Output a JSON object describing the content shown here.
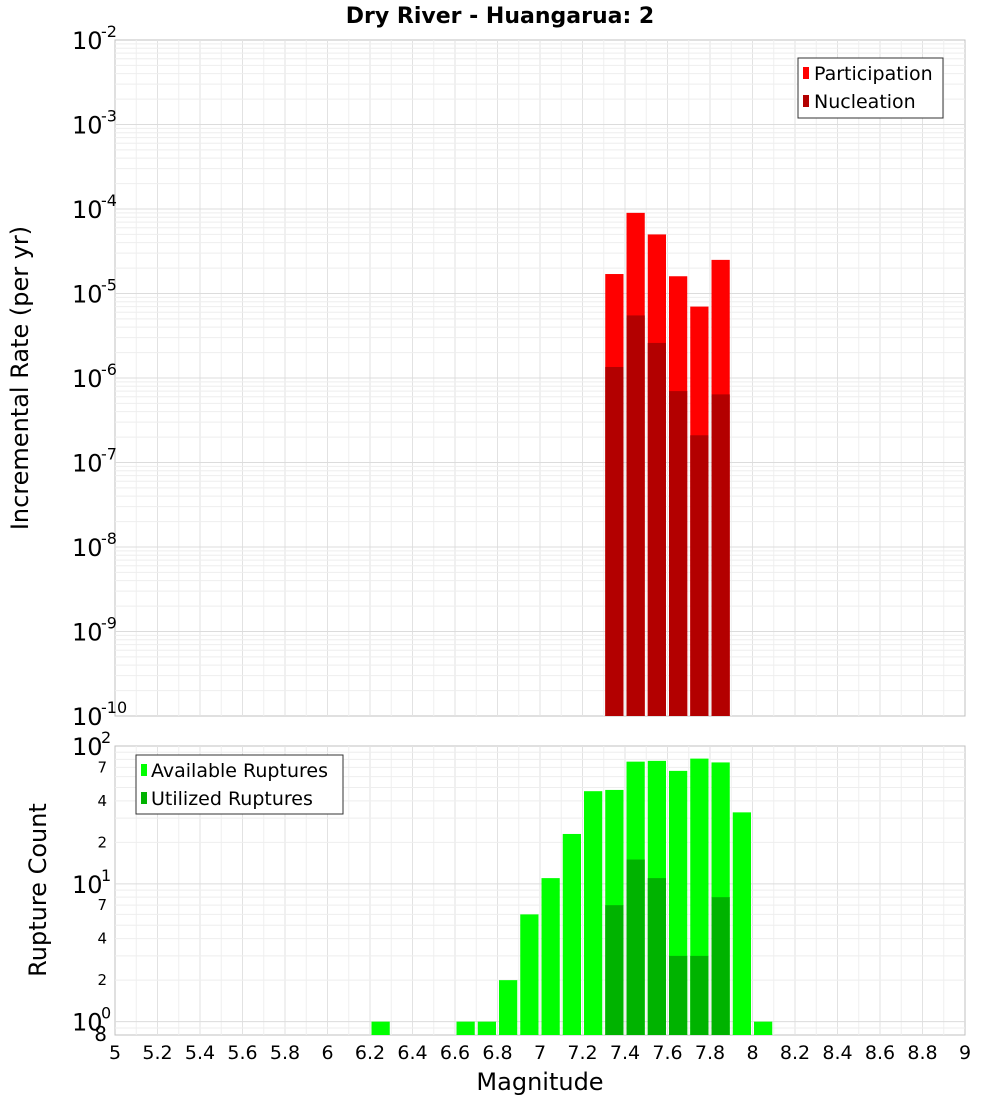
{
  "chart_data": [
    {
      "type": "bar",
      "title": "Dry River - Huangarua: 2",
      "xlabel": "Magnitude",
      "ylabel": "Incremental Rate (per yr)",
      "yscale": "log",
      "xlim": [
        5,
        9
      ],
      "ylim": [
        1e-10,
        0.01
      ],
      "bin_width": 0.1,
      "x": [
        7.35,
        7.45,
        7.55,
        7.65,
        7.75,
        7.85
      ],
      "series": [
        {
          "name": "Participation",
          "color": "#ff0000",
          "values": [
            1.7e-05,
            9e-05,
            5e-05,
            1.6e-05,
            7e-06,
            2.5e-05
          ]
        },
        {
          "name": "Nucleation",
          "color": "#b30000",
          "values": [
            1.35e-06,
            5.5e-06,
            2.6e-06,
            7e-07,
            2.1e-07,
            6.4e-07
          ]
        }
      ],
      "y_tick_exponents": [
        -10,
        -9,
        -8,
        -7,
        -6,
        -5,
        -4,
        -3,
        -2
      ],
      "legend": {
        "position": "top-right"
      },
      "grid": true
    },
    {
      "type": "bar",
      "xlabel": "Magnitude",
      "ylabel": "Rupture Count",
      "yscale": "log",
      "xlim": [
        5,
        9
      ],
      "ylim": [
        0.8,
        100
      ],
      "bin_width": 0.1,
      "x_ticks": [
        "5",
        "5.2",
        "5.4",
        "5.6",
        "5.8",
        "6",
        "6.2",
        "6.4",
        "6.6",
        "6.8",
        "7",
        "7.2",
        "7.4",
        "7.6",
        "7.8",
        "8",
        "8.2",
        "8.4",
        "8.6",
        "8.8",
        "9"
      ],
      "series": [
        {
          "name": "Available Ruptures",
          "color": "#00ff00",
          "x": [
            6.25,
            6.65,
            6.75,
            6.85,
            6.95,
            7.05,
            7.15,
            7.25,
            7.35,
            7.45,
            7.55,
            7.65,
            7.75,
            7.85,
            7.95,
            8.05
          ],
          "values": [
            1,
            1,
            1,
            2,
            6,
            11,
            23,
            47,
            48,
            77,
            78,
            66,
            81,
            76,
            33,
            1
          ]
        },
        {
          "name": "Utilized Ruptures",
          "color": "#00b300",
          "x": [
            7.35,
            7.45,
            7.55,
            7.65,
            7.75,
            7.85
          ],
          "values": [
            7,
            15,
            11,
            3,
            3,
            8
          ]
        }
      ],
      "y_tick_labels": {
        "major": [
          "10",
          "10",
          "10"
        ],
        "major_exponents": [
          "0",
          "1",
          "2"
        ],
        "minor": [
          "2",
          "4",
          "7"
        ],
        "bottom": "8"
      },
      "legend": {
        "position": "top-left"
      },
      "grid": true
    }
  ]
}
